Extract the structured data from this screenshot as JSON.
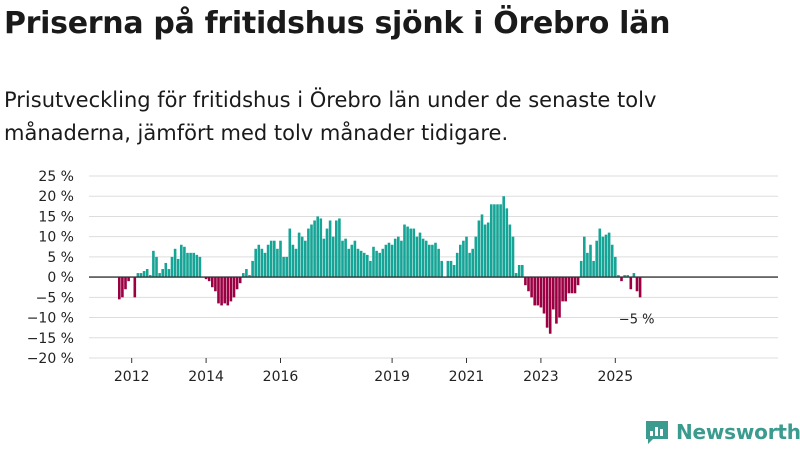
{
  "title": "Priserna på fritidshus sjönk i Örebro län",
  "subtitle": "Prisutveckling för fritidshus i Örebro län under de senaste tolv månaderna, jämfört med tolv månader tidigare.",
  "brand": "Newsworthy",
  "colors": {
    "positive": "#15a496",
    "negative": "#9b0043",
    "brand": "#3a9b8e",
    "grid": "#dddddd",
    "text": "#222222"
  },
  "chart_data": {
    "type": "bar",
    "title": "Priserna på fritidshus sjönk i Örebro län",
    "xlabel": "",
    "ylabel": "",
    "ylim": [
      -20,
      25
    ],
    "yticks": [
      25,
      20,
      15,
      10,
      5,
      0,
      -5,
      -10,
      -15,
      -20
    ],
    "ytick_labels": [
      "25 %",
      "20 %",
      "15 %",
      "10 %",
      "5 %",
      "0 %",
      "−5 %",
      "−10 %",
      "−15 %",
      "−20 %"
    ],
    "x_start": "2011-09",
    "x_tick_labels": [
      {
        "label": "2012",
        "month_index": 4
      },
      {
        "label": "2014",
        "month_index": 28
      },
      {
        "label": "2016",
        "month_index": 52
      },
      {
        "label": "2019",
        "month_index": 88
      },
      {
        "label": "2021",
        "month_index": 112
      },
      {
        "label": "2023",
        "month_index": 136
      },
      {
        "label": "2025",
        "month_index": 160
      }
    ],
    "values": [
      -5.5,
      -5,
      -3,
      -1,
      0,
      -5,
      1,
      1,
      1.5,
      2,
      0.5,
      6.5,
      5,
      1,
      2,
      3.5,
      2,
      5,
      7,
      4.5,
      8,
      7.5,
      6,
      6,
      6,
      5.5,
      5,
      0,
      -0.5,
      -1,
      -2.5,
      -3.5,
      -6.5,
      -7,
      -6.5,
      -7,
      -6,
      -5,
      -3,
      -1.5,
      1,
      2,
      0.5,
      4,
      7,
      8,
      7,
      6,
      8,
      9,
      9,
      7,
      9,
      5,
      5,
      12,
      8,
      7,
      11,
      10,
      9,
      12,
      13,
      14,
      15,
      14.5,
      9.5,
      12,
      14,
      10,
      14,
      14.5,
      9,
      9.5,
      7,
      8,
      9,
      7,
      6.5,
      6,
      5.5,
      4,
      7.5,
      6.5,
      6,
      7,
      8,
      8.5,
      8,
      9.5,
      10,
      9,
      13,
      12.5,
      12,
      12,
      10,
      11,
      9.5,
      9,
      8,
      8,
      8.5,
      7,
      4,
      0,
      4,
      4,
      3,
      6,
      8,
      9,
      10,
      6,
      7,
      10,
      14,
      15.5,
      13,
      13.5,
      18,
      18,
      18,
      18,
      20,
      17,
      13,
      10,
      1,
      3,
      3,
      -2,
      -3.5,
      -5,
      -7,
      -7,
      -7.5,
      -9,
      -12.5,
      -14,
      -8,
      -11.5,
      -10,
      -6,
      -6,
      -4,
      -4,
      -4,
      -2,
      4,
      10,
      6,
      8,
      4,
      9,
      12,
      10,
      10.5,
      11,
      8,
      5,
      0.5,
      -1,
      0.5,
      0.5,
      -3,
      1,
      -3.5,
      -5
    ],
    "annotation": "−5 %"
  }
}
